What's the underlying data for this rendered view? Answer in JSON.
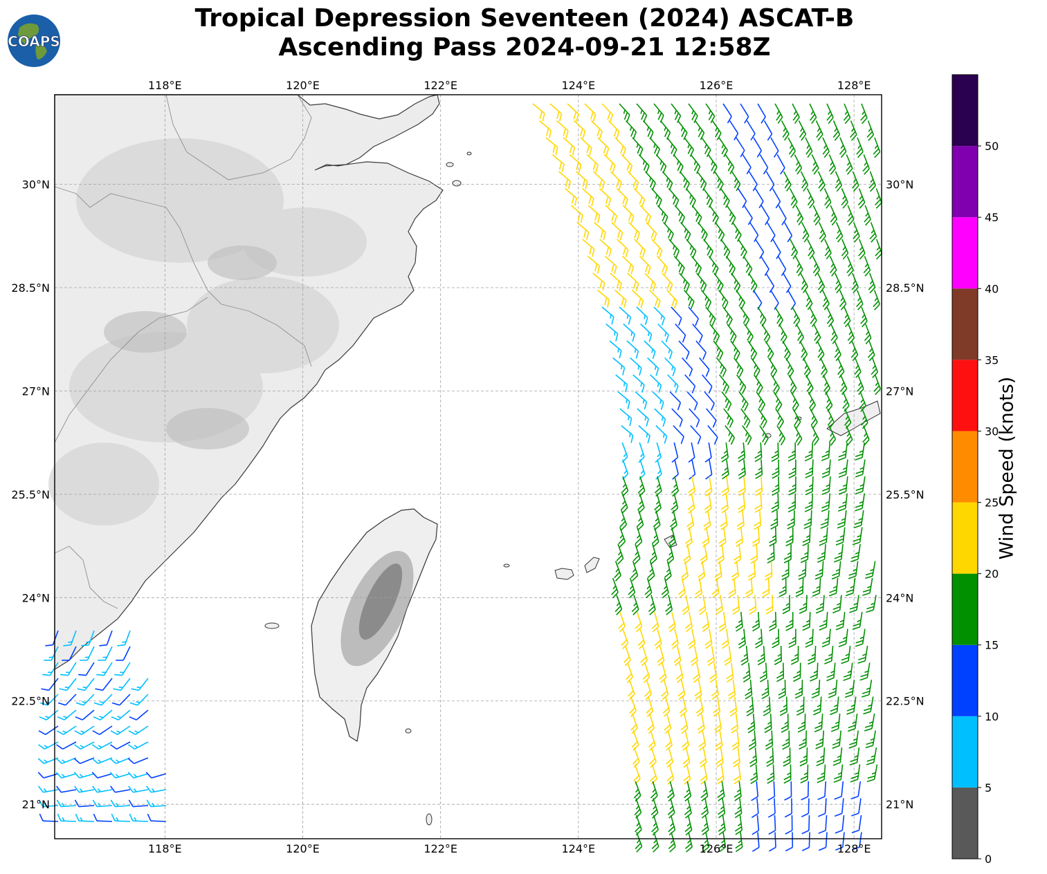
{
  "header": {
    "title_line1": "Tropical Depression Seventeen (2024) ASCAT-B",
    "title_line2": "Ascending Pass 2024-09-21 12:58Z",
    "logo_text": "COAPS"
  },
  "map": {
    "lon_range": [
      116.4,
      128.4
    ],
    "lat_range": [
      20.5,
      31.3
    ],
    "lon_ticks": [
      {
        "value": 118,
        "label": "118°E"
      },
      {
        "value": 120,
        "label": "120°E"
      },
      {
        "value": 122,
        "label": "122°E"
      },
      {
        "value": 124,
        "label": "124°E"
      },
      {
        "value": 126,
        "label": "126°E"
      },
      {
        "value": 128,
        "label": "128°E"
      }
    ],
    "lat_ticks": [
      {
        "value": 21,
        "label": "21°N"
      },
      {
        "value": 22.5,
        "label": "22.5°N"
      },
      {
        "value": 24,
        "label": "24°N"
      },
      {
        "value": 25.5,
        "label": "25.5°N"
      },
      {
        "value": 27,
        "label": "27°N"
      },
      {
        "value": 28.5,
        "label": "28.5°N"
      },
      {
        "value": 30,
        "label": "30°N"
      }
    ],
    "grid": "dashed",
    "land_color": "#e8e8e8",
    "coastline_color": "#333333"
  },
  "colorbar": {
    "title": "Wind Speed (knots)",
    "bins": [
      {
        "from": 0,
        "to": 5,
        "color": "#595959"
      },
      {
        "from": 5,
        "to": 10,
        "color": "#00bfff"
      },
      {
        "from": 10,
        "to": 15,
        "color": "#0040ff"
      },
      {
        "from": 15,
        "to": 20,
        "color": "#009000"
      },
      {
        "from": 20,
        "to": 25,
        "color": "#ffd700"
      },
      {
        "from": 25,
        "to": 30,
        "color": "#ff8c00"
      },
      {
        "from": 30,
        "to": 35,
        "color": "#ff1010"
      },
      {
        "from": 35,
        "to": 40,
        "color": "#7f3b28"
      },
      {
        "from": 40,
        "to": 45,
        "color": "#ff00ff"
      },
      {
        "from": 45,
        "to": 50,
        "color": "#8000b0"
      },
      {
        "from": 50,
        "to": 55,
        "color": "#2a0050"
      }
    ],
    "tick_labels": [
      "0",
      "5",
      "10",
      "15",
      "20",
      "25",
      "30",
      "35",
      "40",
      "45",
      "50"
    ]
  }
}
